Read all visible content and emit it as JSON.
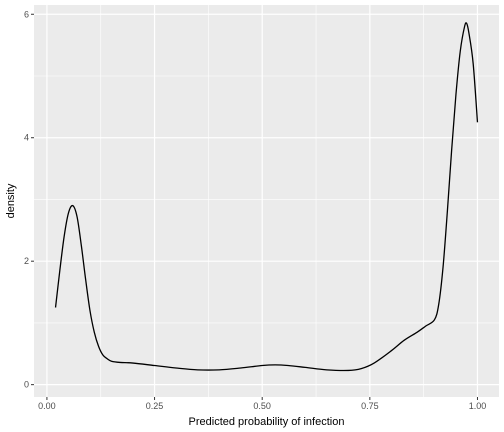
{
  "chart_data": {
    "type": "line",
    "xlabel": "Predicted probability of infection",
    "ylabel": "density",
    "xlim": [
      -0.03,
      1.05
    ],
    "ylim": [
      -0.2,
      6.15
    ],
    "x_ticks": [
      0.0,
      0.25,
      0.5,
      0.75,
      1.0
    ],
    "x_tick_labels": [
      "0.00",
      "0.25",
      "0.50",
      "0.75",
      "1.00"
    ],
    "y_ticks": [
      0,
      2,
      4,
      6
    ],
    "y_tick_labels": [
      "0",
      "2",
      "4",
      "6"
    ],
    "grid": true,
    "background": "#EBEBEB",
    "gridline_color": "#FFFFFF",
    "line_color": "#000000",
    "series": [
      {
        "x": [
          0.02,
          0.03,
          0.04,
          0.05,
          0.06,
          0.07,
          0.08,
          0.09,
          0.1,
          0.11,
          0.12,
          0.13,
          0.14,
          0.15,
          0.17,
          0.2,
          0.25,
          0.3,
          0.35,
          0.4,
          0.45,
          0.5,
          0.53,
          0.56,
          0.6,
          0.65,
          0.7,
          0.73,
          0.76,
          0.8,
          0.83,
          0.86,
          0.88,
          0.9,
          0.91,
          0.92,
          0.93,
          0.94,
          0.95,
          0.96,
          0.97,
          0.975,
          0.98,
          0.99,
          1.0
        ],
        "y": [
          1.25,
          1.85,
          2.4,
          2.78,
          2.9,
          2.72,
          2.25,
          1.7,
          1.2,
          0.85,
          0.62,
          0.48,
          0.42,
          0.38,
          0.36,
          0.35,
          0.31,
          0.27,
          0.24,
          0.24,
          0.27,
          0.31,
          0.32,
          0.31,
          0.28,
          0.24,
          0.23,
          0.26,
          0.35,
          0.55,
          0.72,
          0.85,
          0.95,
          1.05,
          1.3,
          1.9,
          2.8,
          3.8,
          4.7,
          5.4,
          5.8,
          5.85,
          5.7,
          5.2,
          4.25
        ]
      }
    ]
  }
}
